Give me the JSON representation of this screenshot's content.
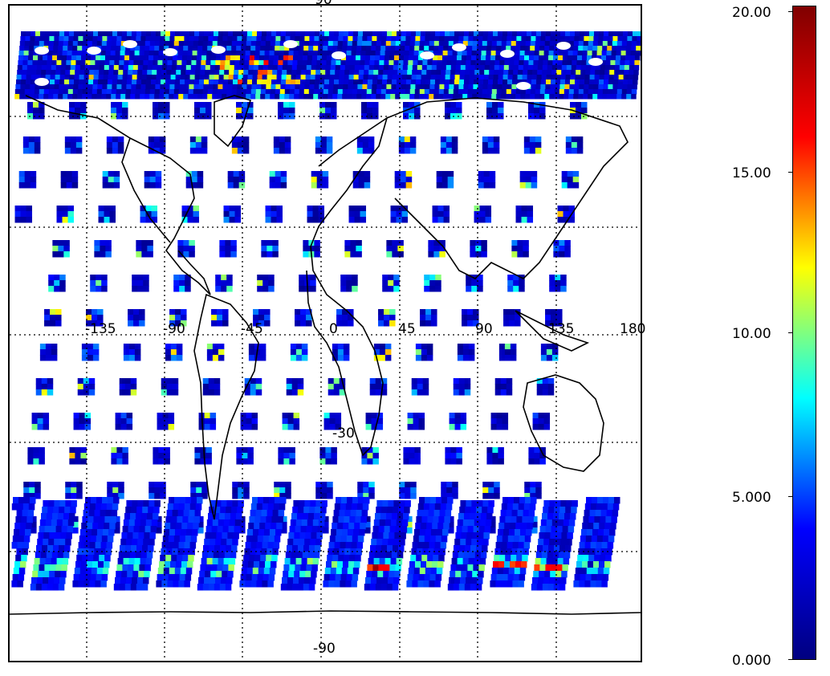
{
  "map": {
    "lat_labels_top": "90",
    "lat_labels_bottom": "-90",
    "lat_label_minus30": "-30",
    "lon_labels": [
      "-135",
      "-90",
      "-45",
      "0",
      "45",
      "90",
      "135",
      "180"
    ],
    "gridline_style": "dotted",
    "projection": "cylindrical"
  },
  "colorbar": {
    "min": 0.0,
    "max": 20.0,
    "tick_labels": [
      "0.000",
      "5.000",
      "10.00",
      "15.00",
      "20.00"
    ],
    "colormap": "jet",
    "colors": [
      "#000080",
      "#0000ff",
      "#00ffff",
      "#ffff00",
      "#ff0000",
      "#800000"
    ]
  }
}
